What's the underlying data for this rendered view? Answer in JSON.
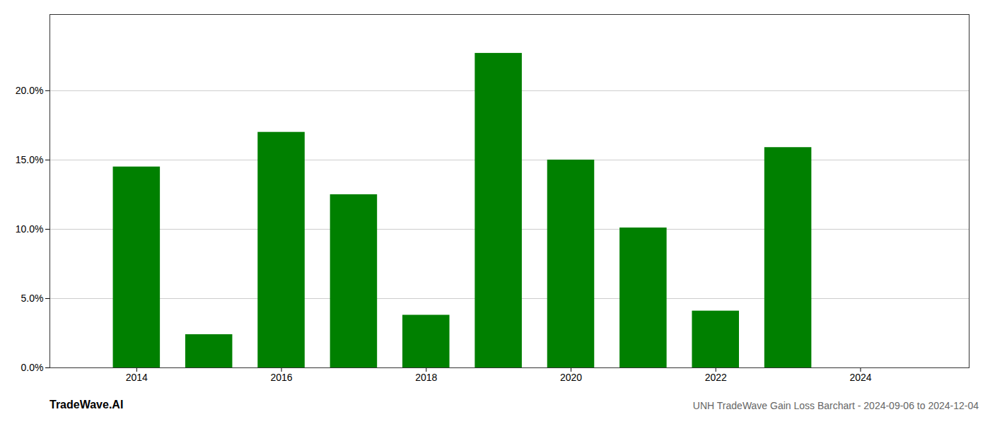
{
  "chart_data": {
    "type": "bar",
    "title": "UNH TradeWave Gain Loss Barchart - 2024-09-06 to 2024-12-04",
    "annotations": [
      "TradeWave.AI"
    ],
    "x": [
      2014,
      2015,
      2016,
      2017,
      2018,
      2019,
      2020,
      2021,
      2022,
      2023
    ],
    "values": [
      0.145,
      0.024,
      0.17,
      0.125,
      0.038,
      0.227,
      0.15,
      0.101,
      0.041,
      0.159
    ],
    "color": "#008000",
    "xlim": [
      2012.8,
      2025.5
    ],
    "xticks": [
      2014,
      2016,
      2018,
      2020,
      2022,
      2024
    ],
    "ylim": [
      0,
      0.255
    ],
    "yticks": [
      {
        "value": 0.0,
        "label": "0.0%"
      },
      {
        "value": 0.05,
        "label": "5.0%"
      },
      {
        "value": 0.1,
        "label": "10.0%"
      },
      {
        "value": 0.15,
        "label": "15.0%"
      },
      {
        "value": 0.2,
        "label": "20.0%"
      }
    ],
    "grid": true
  }
}
